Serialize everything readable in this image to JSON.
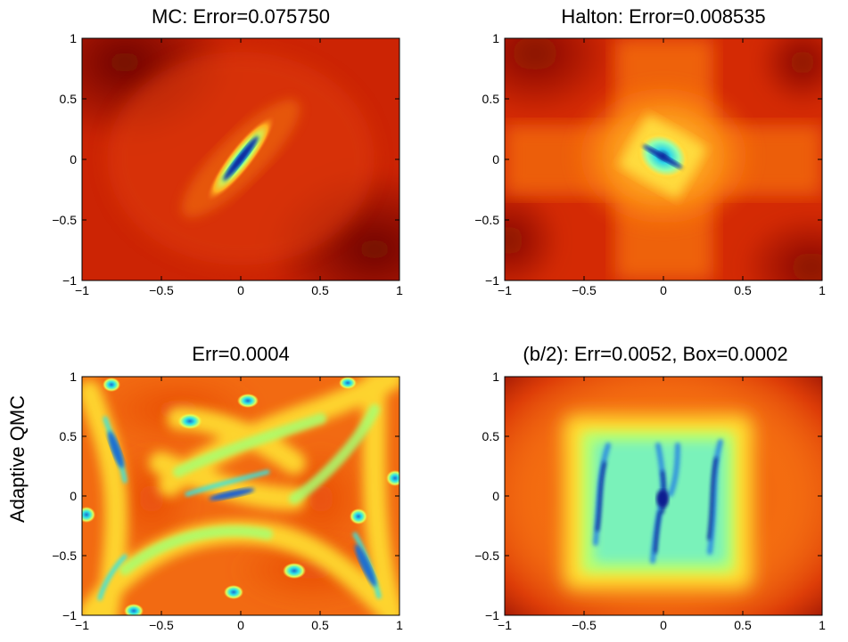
{
  "figure": {
    "row_label_bottom": "Adaptive QMC"
  },
  "chart_data": [
    {
      "type": "heatmap",
      "title": "MC: Error=0.075750",
      "xlim": [
        -1,
        1
      ],
      "ylim": [
        -1,
        1
      ],
      "x_ticks": [
        "−1",
        "−0.5",
        "0",
        "0.5",
        "1"
      ],
      "y_ticks": [
        "1",
        "0.5",
        "0",
        "−0.5",
        "−1"
      ],
      "colormap": "jet",
      "background_color": "#d42a04",
      "features": [
        {
          "kind": "diagonal-valley",
          "x": 0.0,
          "y": 0.0,
          "angle_deg": -45
        }
      ]
    },
    {
      "type": "heatmap",
      "title": "Halton: Error=0.008535",
      "xlim": [
        -1,
        1
      ],
      "ylim": [
        -1,
        1
      ],
      "x_ticks": [
        "−1",
        "−0.5",
        "0",
        "0.5",
        "1"
      ],
      "y_ticks": [
        "1",
        "0.5",
        "0",
        "−0.5",
        "−1"
      ],
      "colormap": "jet",
      "background_color": "#e8340a",
      "features": [
        {
          "kind": "diamond-valley",
          "x": 0.0,
          "y": 0.0,
          "angle_deg": 25
        }
      ]
    },
    {
      "type": "heatmap",
      "title": "Err=0.0004",
      "xlim": [
        -1,
        1
      ],
      "ylim": [
        -1,
        1
      ],
      "x_ticks": [
        "−1",
        "−0.5",
        "0",
        "0.5",
        "1"
      ],
      "y_ticks": [
        "1",
        "0.5",
        "0",
        "−0.5",
        "−1"
      ],
      "colormap": "jet",
      "background_color": "#f06010",
      "features": [
        {
          "kind": "network-valleys",
          "x": 0.0,
          "y": 0.0
        }
      ]
    },
    {
      "type": "heatmap",
      "title": "(b/2): Err=0.0052, Box=0.0002",
      "xlim": [
        -1,
        1
      ],
      "ylim": [
        -1,
        1
      ],
      "x_ticks": [
        "−1",
        "−0.5",
        "0",
        "0.5",
        "1"
      ],
      "y_ticks": [
        "1",
        "0.5",
        "0",
        "−0.5",
        "−1"
      ],
      "colormap": "jet",
      "background_color": "#e63a0a",
      "features": [
        {
          "kind": "square-basin",
          "x": 0.0,
          "y": 0.0
        }
      ]
    }
  ],
  "colors": {
    "dark_red": "#7a0a04",
    "red": "#d42a04",
    "orange": "#f57a10",
    "yellow": "#ffe830",
    "light_green": "#b6ff6a",
    "cyan": "#30e6e6",
    "blue": "#1060d0",
    "dark_blue": "#0a1a90"
  }
}
